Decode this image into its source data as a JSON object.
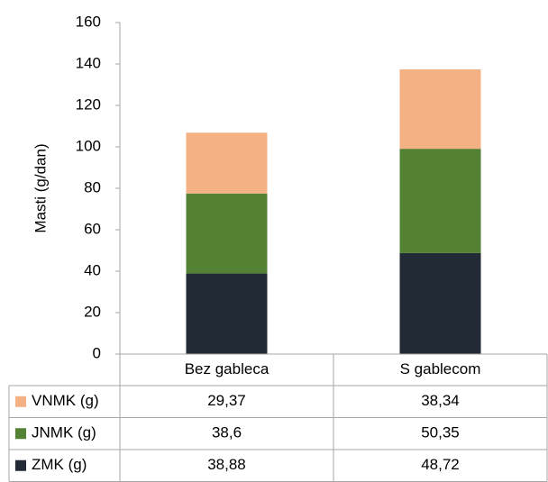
{
  "chart_data": {
    "type": "stacked_bar",
    "y_label": "Masti (g/dan)",
    "categories": [
      "Bez gableca",
      "S gablecom"
    ],
    "series": [
      {
        "name": "VNMK (g)",
        "color": "#f4b183",
        "values": [
          29.37,
          38.34
        ],
        "value_labels": [
          "29,37",
          "38,34"
        ]
      },
      {
        "name": "JNMK (g)",
        "color": "#548235",
        "values": [
          38.6,
          50.35
        ],
        "value_labels": [
          "38,6",
          "50,35"
        ]
      },
      {
        "name": "ZMK (g)",
        "color": "#222a35",
        "values": [
          38.88,
          48.72
        ],
        "value_labels": [
          "38,88",
          "48,72"
        ]
      }
    ],
    "ylim": [
      0,
      160
    ],
    "yticks": [
      0,
      20,
      40,
      60,
      80,
      100,
      120,
      140,
      160
    ],
    "grid": false
  }
}
